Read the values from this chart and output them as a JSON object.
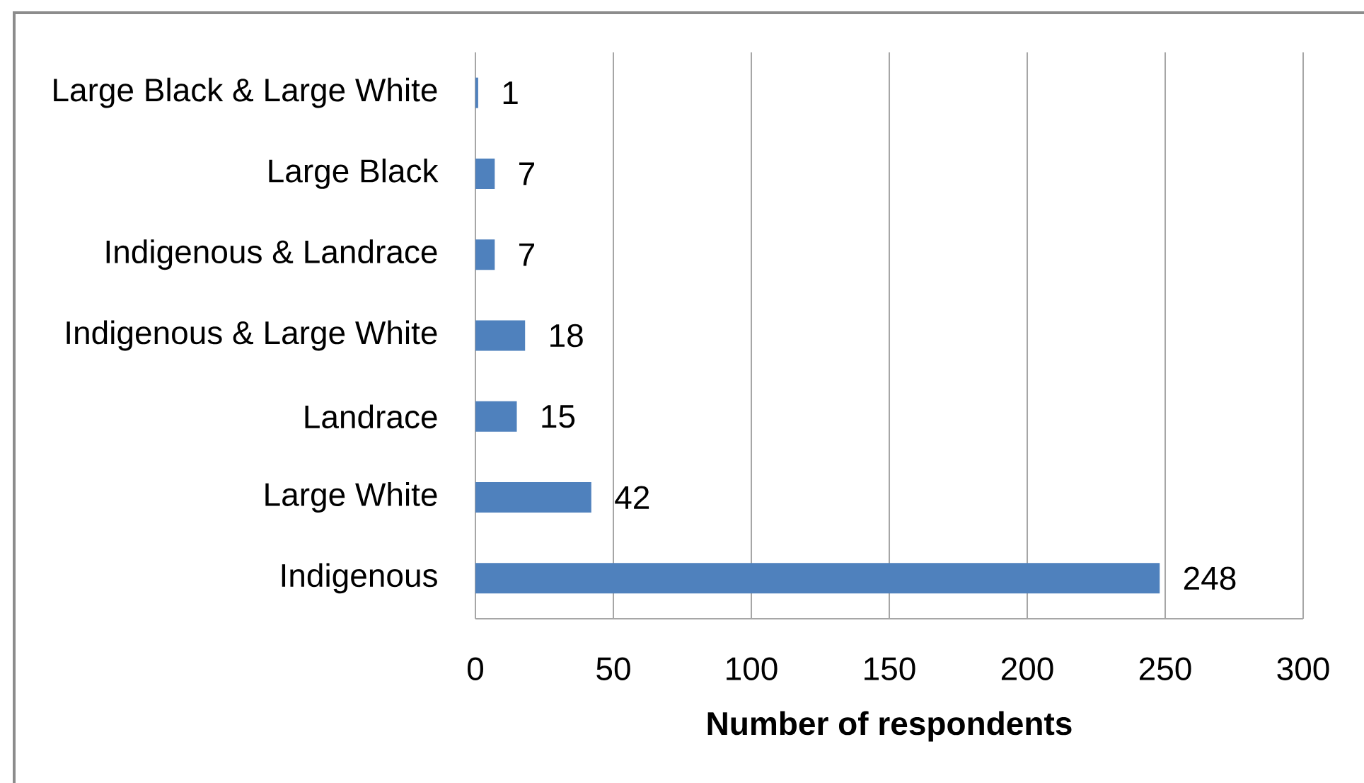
{
  "chart_data": {
    "type": "bar",
    "orientation": "horizontal",
    "categories": [
      "Large Black & Large White",
      "Large Black",
      "Indigenous & Landrace",
      "Indigenous & Large White",
      "Landrace",
      "Large White",
      "Indigenous"
    ],
    "values": [
      1,
      7,
      7,
      18,
      15,
      42,
      248
    ],
    "color": "#4f81bd",
    "xlabel": "Number of respondents",
    "xlim": [
      0,
      300
    ],
    "xticks": [
      0,
      50,
      100,
      150,
      200,
      250,
      300
    ],
    "grid": "x",
    "data_labels": true
  }
}
